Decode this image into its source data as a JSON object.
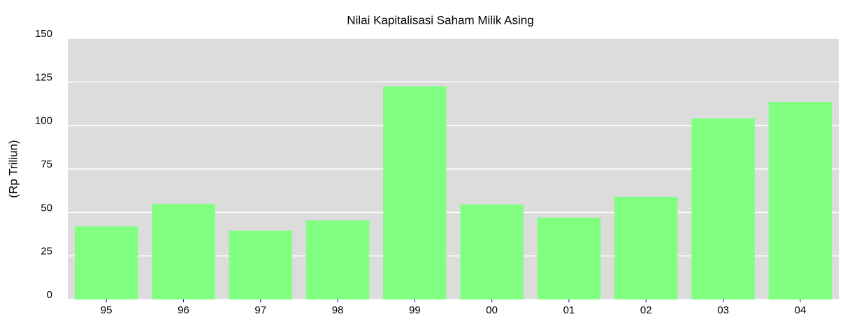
{
  "chart_data": {
    "type": "bar",
    "title": "Nilai Kapitalisasi Saham Milik Asing",
    "y_label": "(Rp Triliun)",
    "categories": [
      "95",
      "96",
      "97",
      "98",
      "99",
      "00",
      "01",
      "02",
      "03",
      "04"
    ],
    "values": [
      42,
      55,
      39.5,
      45.5,
      122.5,
      54.5,
      47,
      59,
      104,
      113.5
    ],
    "color": "#80ff80",
    "ylim": [
      0,
      150
    ],
    "yticks": [
      0,
      25,
      50,
      75,
      100,
      125,
      150
    ],
    "grid": true
  }
}
